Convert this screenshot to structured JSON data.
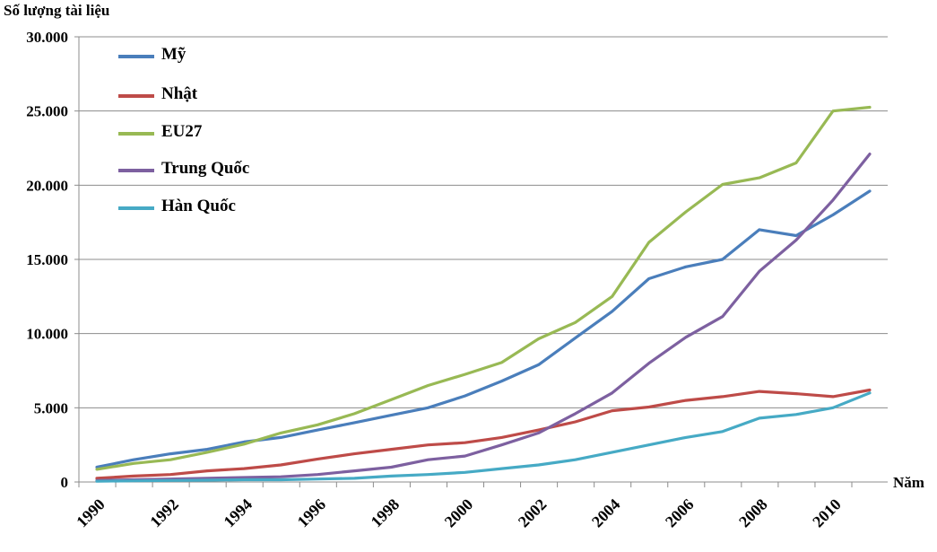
{
  "chart_data": {
    "type": "line",
    "ylabel": "Số lượng tài liệu",
    "xlabel": "Năm",
    "ylim": [
      0,
      30000
    ],
    "yticks": [
      0,
      5000,
      10000,
      15000,
      20000,
      25000,
      30000
    ],
    "ytick_labels": [
      "0",
      "5.000",
      "10.000",
      "15.000",
      "20.000",
      "25.000",
      "30.000"
    ],
    "xlim": [
      1990,
      2011
    ],
    "xtick_labels": [
      "1990",
      "1992",
      "1994",
      "1996",
      "1998",
      "2000",
      "2002",
      "2004",
      "2006",
      "2008",
      "2010"
    ],
    "x": [
      1990,
      1991,
      1992,
      1993,
      1994,
      1995,
      1996,
      1997,
      1998,
      1999,
      2000,
      2001,
      2002,
      2003,
      2004,
      2005,
      2006,
      2007,
      2008,
      2009,
      2010,
      2011
    ],
    "grid": "horizontal",
    "legend_position": "top-left",
    "series": [
      {
        "name": "Mỹ",
        "color": "#4a7ebb",
        "values": [
          1000,
          1500,
          1900,
          2200,
          2700,
          3000,
          3500,
          4000,
          4500,
          5000,
          5800,
          6800,
          7900,
          9700,
          11500,
          13700,
          14500,
          15000,
          17000,
          16600,
          18000,
          19600
        ]
      },
      {
        "name": "Nhật",
        "color": "#be4b48",
        "values": [
          250,
          400,
          500,
          750,
          900,
          1150,
          1550,
          1900,
          2200,
          2500,
          2650,
          3000,
          3500,
          4050,
          4800,
          5050,
          5500,
          5750,
          6100,
          5950,
          5750,
          6200
        ]
      },
      {
        "name": "EU27",
        "color": "#98b954",
        "values": [
          850,
          1250,
          1500,
          2000,
          2550,
          3300,
          3850,
          4600,
          5550,
          6500,
          7250,
          8050,
          9650,
          10750,
          12500,
          16150,
          18200,
          20050,
          20500,
          21500,
          25000,
          25250
        ]
      },
      {
        "name": "Trung Quốc",
        "color": "#7d60a0",
        "values": [
          100,
          150,
          200,
          250,
          300,
          350,
          500,
          750,
          1000,
          1500,
          1750,
          2500,
          3300,
          4600,
          6000,
          8000,
          9750,
          11150,
          14200,
          16300,
          19000,
          22100
        ]
      },
      {
        "name": "Hàn Quốc",
        "color": "#46aac5",
        "values": [
          50,
          80,
          100,
          120,
          150,
          150,
          200,
          250,
          400,
          500,
          650,
          900,
          1150,
          1500,
          2000,
          2500,
          3000,
          3400,
          4300,
          4550,
          5000,
          6000
        ]
      }
    ]
  }
}
